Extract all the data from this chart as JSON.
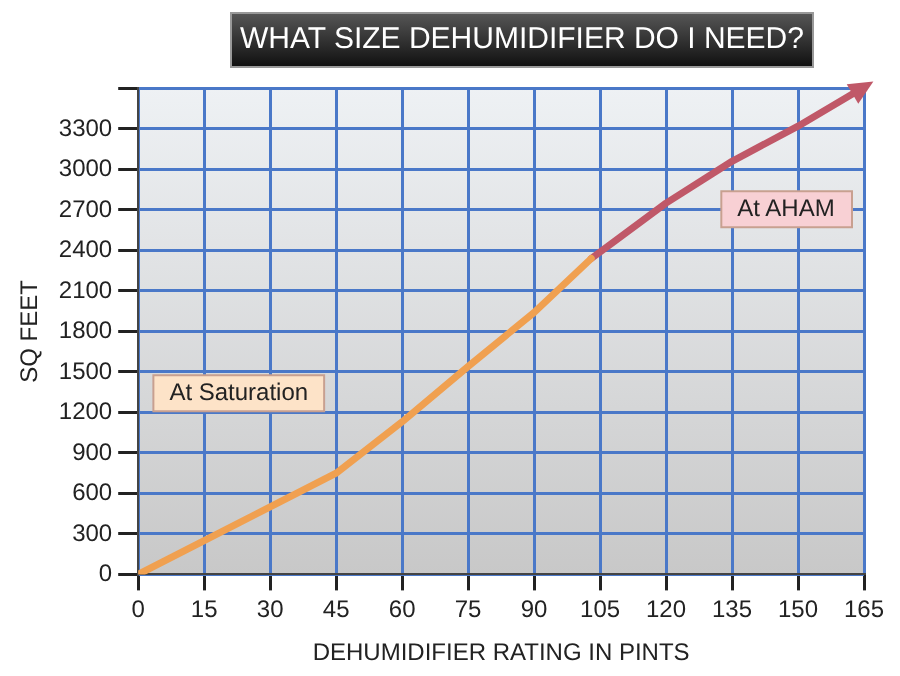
{
  "chart_data": {
    "type": "line",
    "title": "WHAT SIZE DEHUMIDIFIER DO I NEED?",
    "xlabel": "DEHUMIDIFIER RATING IN PINTS",
    "ylabel": "SQ FEET",
    "series": [
      {
        "name": "At Saturation",
        "color": "#f0a050",
        "x": [
          0,
          15,
          30,
          45,
          60,
          75,
          90,
          103
        ],
        "values": [
          0,
          250,
          500,
          750,
          1130,
          1540,
          1940,
          2340
        ]
      },
      {
        "name": "At AHAM",
        "color": "#c05868",
        "x": [
          103,
          120,
          135,
          150,
          164
        ],
        "values": [
          2340,
          2750,
          3060,
          3320,
          3590
        ]
      }
    ],
    "xlim": [
      0,
      165
    ],
    "xticks": [
      0,
      15,
      30,
      45,
      60,
      75,
      90,
      105,
      120,
      135,
      150,
      165
    ],
    "ylim": [
      0,
      3600
    ],
    "yticks": [
      0,
      300,
      600,
      900,
      1200,
      1500,
      1800,
      2100,
      2400,
      2700,
      3000,
      3300,
      {
        "value": 3600,
        "label": null
      }
    ],
    "grid": true,
    "marker": "none",
    "line_style": "solid",
    "legend": false
  }
}
